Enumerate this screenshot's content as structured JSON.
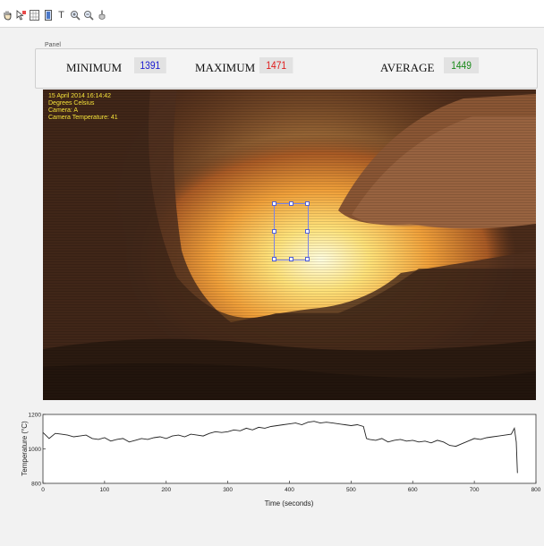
{
  "toolbar": {
    "icons": [
      "hand-pan-icon",
      "data-cursor-icon",
      "grid-icon",
      "colorbar-icon",
      "text-icon",
      "zoom-in-icon",
      "zoom-out-icon",
      "brush-icon"
    ],
    "text_tool_label": "T"
  },
  "panel": {
    "title": "Panel",
    "minimum_label": "MINIMUM",
    "minimum_value": "1391",
    "maximum_label": "MAXIMUM",
    "maximum_value": "1471",
    "average_label": "AVERAGE",
    "average_value": "1449"
  },
  "colors": {
    "minimum": "#1a1ad0",
    "maximum": "#e01a1a",
    "average": "#1a8a1a",
    "roi": "#7b83e6"
  },
  "camera": {
    "overlay_lines": [
      "15 April 2014  16:14:42",
      "Degrees Celsius",
      "Camera: A",
      "Camera Temperature: 41"
    ]
  },
  "chart_data": {
    "type": "line",
    "xlabel": "Time (seconds)",
    "ylabel": "Temperature (°C)",
    "xlim": [
      0,
      800
    ],
    "ylim": [
      800,
      1200
    ],
    "xticks": [
      "0",
      "100",
      "200",
      "300",
      "400",
      "500",
      "600",
      "700",
      "800"
    ],
    "yticks": [
      "800",
      "1000",
      "1200"
    ],
    "grid": false,
    "series": [
      {
        "x": [
          0,
          10,
          20,
          30,
          40,
          50,
          60,
          70,
          80,
          90,
          100,
          110,
          120,
          130,
          140,
          150,
          160,
          170,
          180,
          190,
          200,
          210,
          220,
          230,
          240,
          250,
          260,
          270,
          280,
          290,
          300,
          310,
          320,
          330,
          340,
          350,
          360,
          370,
          380,
          390,
          400,
          410,
          420,
          430,
          440,
          450,
          460,
          470,
          480,
          490,
          500,
          510,
          520,
          525,
          530,
          540,
          550,
          560,
          570,
          580,
          590,
          600,
          610,
          620,
          630,
          640,
          650,
          660,
          670,
          680,
          690,
          700,
          710,
          720,
          730,
          740,
          750,
          760,
          765,
          768,
          770
        ],
        "values": [
          1095,
          1060,
          1090,
          1085,
          1080,
          1070,
          1075,
          1080,
          1060,
          1055,
          1065,
          1045,
          1055,
          1060,
          1040,
          1050,
          1060,
          1055,
          1065,
          1070,
          1060,
          1075,
          1080,
          1070,
          1085,
          1080,
          1075,
          1090,
          1100,
          1095,
          1100,
          1110,
          1105,
          1120,
          1110,
          1125,
          1120,
          1130,
          1135,
          1140,
          1145,
          1150,
          1140,
          1155,
          1160,
          1150,
          1155,
          1150,
          1145,
          1140,
          1135,
          1140,
          1130,
          1060,
          1055,
          1050,
          1060,
          1040,
          1050,
          1055,
          1045,
          1050,
          1040,
          1045,
          1035,
          1050,
          1040,
          1020,
          1015,
          1030,
          1045,
          1060,
          1055,
          1065,
          1070,
          1075,
          1080,
          1085,
          1120,
          1040,
          860
        ]
      }
    ]
  }
}
